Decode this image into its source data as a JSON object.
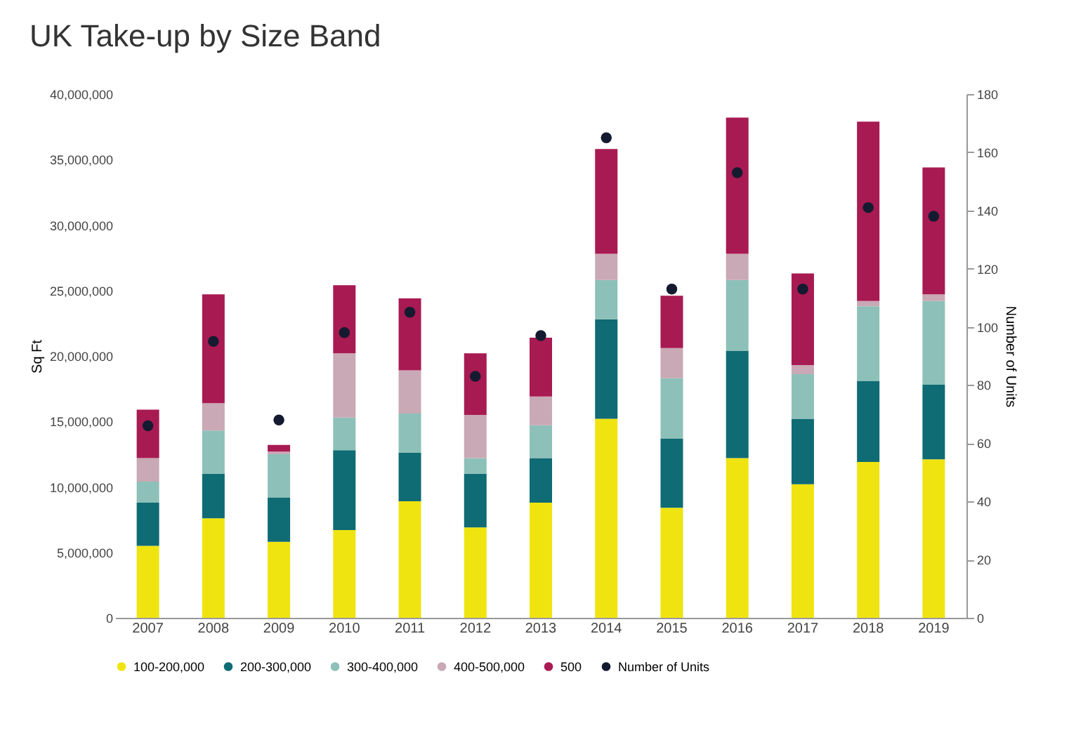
{
  "chart_data": {
    "type": "bar",
    "title": "UK Take-up by Size Band",
    "ylabel": "Sq Ft",
    "y2label": "Number of Units",
    "stacked": true,
    "categories": [
      "2007",
      "2008",
      "2009",
      "2010",
      "2011",
      "2012",
      "2013",
      "2014",
      "2015",
      "2016",
      "2017",
      "2018",
      "2019"
    ],
    "series": [
      {
        "name": "100-200,000",
        "color": "#f0e410",
        "values": [
          5500000,
          7600000,
          5800000,
          6700000,
          8900000,
          6900000,
          8800000,
          15200000,
          8400000,
          12200000,
          10200000,
          11900000,
          12100000
        ]
      },
      {
        "name": "200-300,000",
        "color": "#0f6b74",
        "values": [
          3300000,
          3400000,
          3400000,
          6100000,
          3700000,
          4100000,
          3400000,
          7600000,
          5300000,
          8200000,
          5000000,
          6200000,
          5700000
        ]
      },
      {
        "name": "300-400,000",
        "color": "#8dc0b8",
        "values": [
          1600000,
          3300000,
          3300000,
          2500000,
          3000000,
          1200000,
          2500000,
          3000000,
          4600000,
          5400000,
          3400000,
          5700000,
          6400000
        ]
      },
      {
        "name": "400-500,000",
        "color": "#c9a9b5",
        "values": [
          1800000,
          2100000,
          200000,
          4900000,
          3300000,
          3300000,
          2200000,
          2000000,
          2300000,
          2000000,
          700000,
          400000,
          500000
        ]
      },
      {
        "name": "500",
        "color": "#a81a52",
        "values": [
          3700000,
          8300000,
          500000,
          5200000,
          5500000,
          4700000,
          4500000,
          8000000,
          4000000,
          10400000,
          7000000,
          13700000,
          9700000
        ]
      },
      {
        "name": "Number of Units",
        "type": "scatter",
        "axis": "y2",
        "color": "#141a30",
        "values": [
          66,
          95,
          68,
          98,
          105,
          83,
          97,
          165,
          113,
          153,
          113,
          141,
          138
        ]
      }
    ],
    "ylim": [
      0,
      40000000
    ],
    "yticks": [
      0,
      {
        "value": 5000000,
        "label": "5,000,000"
      },
      {
        "value": 10000000,
        "label": "10,000,000"
      },
      {
        "value": 15000000,
        "label": "15,000,000"
      },
      {
        "value": 20000000,
        "label": "20,000,000"
      },
      {
        "value": 25000000,
        "label": "25,000,000"
      },
      {
        "value": 30000000,
        "label": "30,000,000"
      },
      {
        "value": 35000000,
        "label": "35,000,000"
      },
      {
        "value": 40000000,
        "label": "40,000,000"
      }
    ],
    "y2lim": [
      0,
      180
    ],
    "y2ticks": [
      0,
      20,
      40,
      60,
      80,
      100,
      120,
      140,
      160,
      180
    ],
    "legend": "bottom",
    "marker": "circle"
  }
}
